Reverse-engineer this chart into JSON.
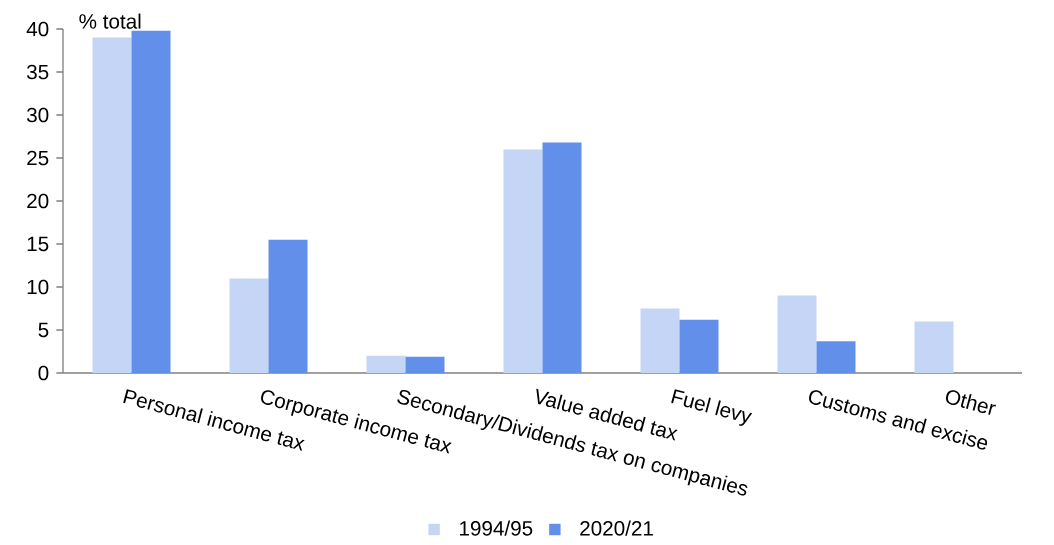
{
  "chart_data": {
    "type": "bar",
    "ylabel": "% total",
    "categories": [
      "Personal income tax",
      "Corporate income tax",
      "Secondary/Dividends tax on companies",
      "Value added tax",
      "Fuel levy",
      "Customs and excise",
      "Other"
    ],
    "series": [
      {
        "name": "1994/95",
        "color": "#c5d5f6",
        "values": [
          39,
          11,
          2.0,
          26,
          7.5,
          9,
          6
        ]
      },
      {
        "name": "2020/21",
        "color": "#628fea",
        "values": [
          39.8,
          15.5,
          1.9,
          26.8,
          6.2,
          3.7,
          null
        ]
      }
    ],
    "ylim": [
      0,
      40
    ],
    "yticks": [
      0,
      5,
      10,
      15,
      20,
      25,
      30,
      35,
      40
    ],
    "grid": false,
    "legend": "bottom"
  }
}
